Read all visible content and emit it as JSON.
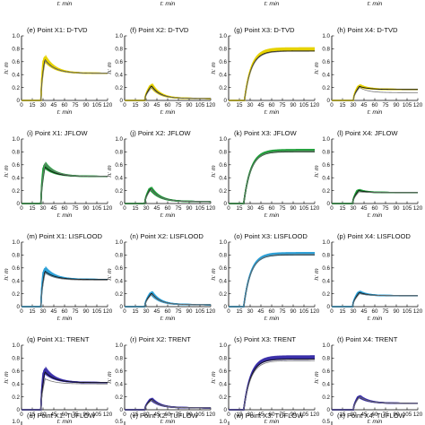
{
  "top_labels": [
    "t: min",
    "t: min",
    "t: min",
    "t: min"
  ],
  "chart_data": {
    "type": "line",
    "xlabel": "t: min",
    "ylabel": "h: m",
    "xlim": [
      0,
      120
    ],
    "ylim": [
      0,
      1.0
    ],
    "x_ticks": [
      "0",
      "15",
      "30",
      "45",
      "60",
      "75",
      "90",
      "105",
      "120"
    ],
    "y_ticks": [
      "0",
      "0.2",
      "0.4",
      "0.6",
      "0.8",
      "1.0"
    ],
    "ensemble_band": true,
    "rows": [
      {
        "model": "D-TVD",
        "color": "#e6d200",
        "panels": [
          {
            "title": "(e) Point X1: D-TVD",
            "onset": 27,
            "peak_t": 32,
            "peak": 0.66,
            "band": 0.04,
            "final": 0.42,
            "decay": 14,
            "ref_peak": 0.62,
            "ref_final": 0.42
          },
          {
            "title": "(f) Point X2: D-TVD",
            "onset": 28,
            "peak_t": 37,
            "peak": 0.24,
            "band": 0.05,
            "final": 0.03,
            "decay": 12,
            "ref_peak": 0.2,
            "ref_final": 0.03
          },
          {
            "title": "(g) Point X3: D-TVD",
            "onset": 22,
            "peak_t": 60,
            "peak": 0.79,
            "band": 0.03,
            "final": 0.79,
            "decay": 10,
            "ref_peak": 0.76,
            "ref_final": 0.76,
            "rising": true
          },
          {
            "title": "(h) Point X4: D-TVD",
            "onset": 30,
            "peak_t": 38,
            "peak": 0.23,
            "band": 0.05,
            "final": 0.17,
            "decay": 12,
            "ref_peak": 0.2,
            "ref_final": 0.12
          }
        ]
      },
      {
        "model": "JFLOW",
        "color": "#1f9e3a",
        "panels": [
          {
            "title": "(i) Point X1: JFLOW",
            "onset": 27,
            "peak_t": 32,
            "peak": 0.6,
            "band": 0.05,
            "final": 0.42,
            "decay": 14,
            "ref_peak": 0.62,
            "ref_final": 0.42
          },
          {
            "title": "(j) Point X2: JFLOW",
            "onset": 28,
            "peak_t": 36,
            "peak": 0.24,
            "band": 0.04,
            "final": 0.03,
            "decay": 13,
            "ref_peak": 0.22,
            "ref_final": 0.03
          },
          {
            "title": "(k) Point X3: JFLOW",
            "onset": 21,
            "peak_t": 60,
            "peak": 0.82,
            "band": 0.02,
            "final": 0.82,
            "decay": 10,
            "ref_peak": 0.81,
            "ref_final": 0.81,
            "rising": true
          },
          {
            "title": "(l) Point X4: JFLOW",
            "onset": 29,
            "peak_t": 37,
            "peak": 0.21,
            "band": 0.03,
            "final": 0.17,
            "decay": 11,
            "ref_peak": 0.18,
            "ref_final": 0.17
          }
        ]
      },
      {
        "model": "LISFLOOD",
        "color": "#2a9fd6",
        "panels": [
          {
            "title": "(m) Point X1: LISFLOOD",
            "onset": 27,
            "peak_t": 32,
            "peak": 0.58,
            "band": 0.05,
            "final": 0.42,
            "decay": 14,
            "ref_peak": 0.52,
            "ref_final": 0.41
          },
          {
            "title": "(n) Point X2: LISFLOOD",
            "onset": 28,
            "peak_t": 37,
            "peak": 0.22,
            "band": 0.05,
            "final": 0.03,
            "decay": 12,
            "ref_peak": 0.19,
            "ref_final": 0.03
          },
          {
            "title": "(o) Point X3: LISFLOOD",
            "onset": 21,
            "peak_t": 60,
            "peak": 0.82,
            "band": 0.02,
            "final": 0.82,
            "decay": 10,
            "ref_peak": 0.81,
            "ref_final": 0.81,
            "rising": true
          },
          {
            "title": "(p) Point X4: LISFLOOD",
            "onset": 29,
            "peak_t": 38,
            "peak": 0.23,
            "band": 0.04,
            "final": 0.17,
            "decay": 11,
            "ref_peak": 0.2,
            "ref_final": 0.17
          }
        ]
      },
      {
        "model": "TRENT",
        "color": "#3a2fa8",
        "panels": [
          {
            "title": "(q) Point X1: TRENT",
            "onset": 27,
            "peak_t": 32,
            "peak": 0.62,
            "band": 0.05,
            "final": 0.42,
            "decay": 14,
            "ref_peak": 0.48,
            "ref_final": 0.4
          },
          {
            "title": "(r) Point X2: TRENT",
            "onset": 28,
            "peak_t": 37,
            "peak": 0.17,
            "band": 0.04,
            "final": 0.03,
            "decay": 12,
            "ref_peak": 0.15,
            "ref_final": 0.03
          },
          {
            "title": "(s) Point X3: TRENT",
            "onset": 21,
            "peak_t": 60,
            "peak": 0.81,
            "band": 0.03,
            "final": 0.81,
            "decay": 10,
            "ref_peak": 0.76,
            "ref_final": 0.76,
            "rising": true
          },
          {
            "title": "(t) Point X4: TRENT",
            "onset": 30,
            "peak_t": 38,
            "peak": 0.21,
            "band": 0.04,
            "final": 0.1,
            "decay": 13,
            "ref_peak": 0.2,
            "ref_final": 0.1
          }
        ]
      }
    ],
    "partial_row": {
      "titles": [
        "(u) Point X1: TUFLOW",
        "(v) Point X2: TUFLOW",
        "(w) Point X3: TUFLOW",
        "(x) Point X4: TUFLOW"
      ],
      "y_top": [
        "1.0",
        "0.5",
        "1.0",
        "0.5"
      ]
    }
  }
}
